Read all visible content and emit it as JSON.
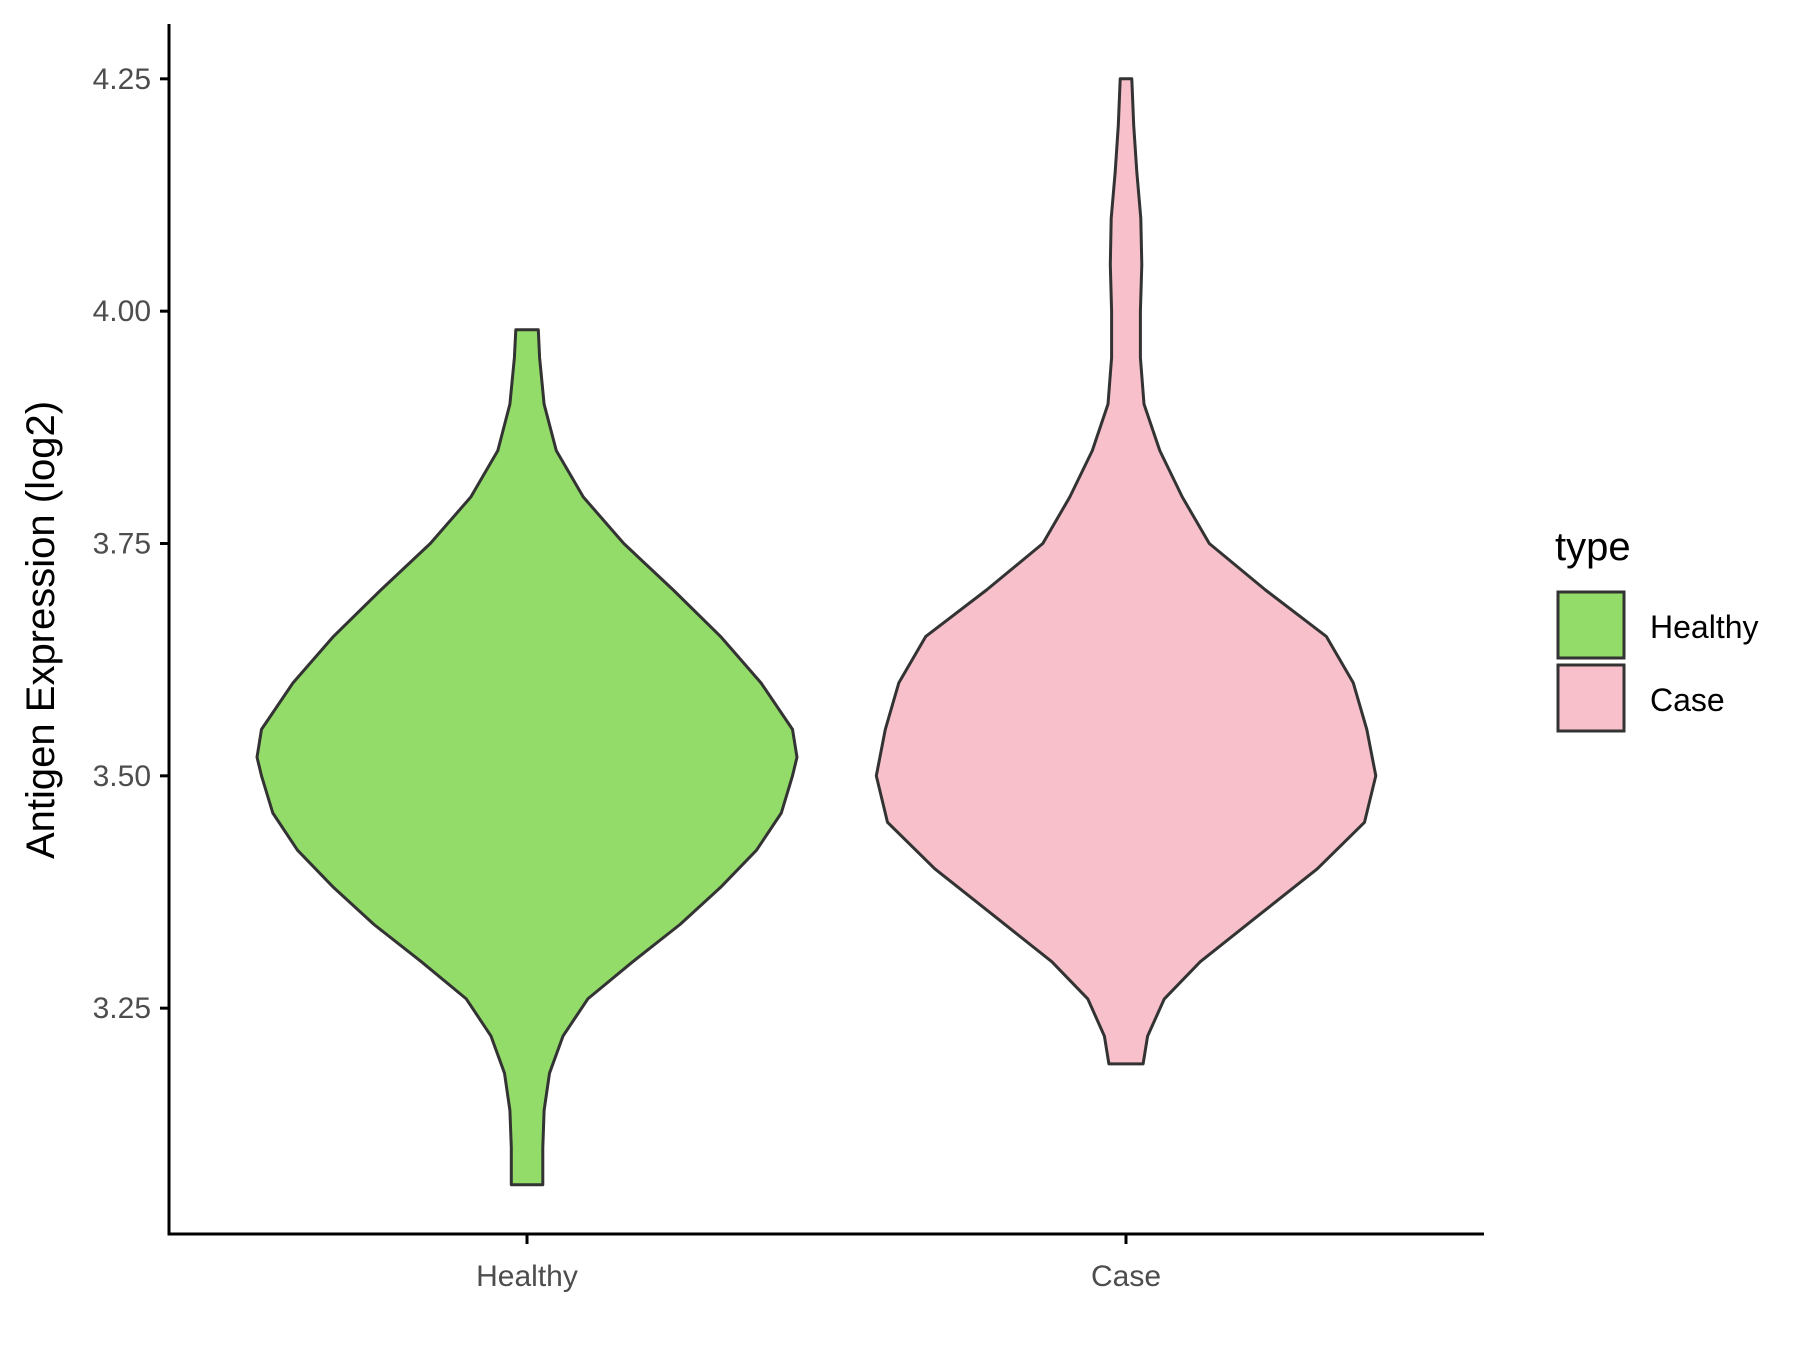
{
  "chart_data": {
    "type": "violin",
    "categories": [
      "Healthy",
      "Case"
    ],
    "xlabel": "",
    "ylabel": "Antigen Expression (log2)",
    "ylim": [
      3.007,
      4.309
    ],
    "y_ticks": [
      "3.25",
      "3.50",
      "3.75",
      "4.00",
      "4.25"
    ],
    "y_tick_values": [
      3.25,
      3.5,
      3.75,
      4.0,
      4.25
    ],
    "grid": false,
    "legend": {
      "title": "type",
      "placement": "right",
      "entries": [
        {
          "label": "Healthy",
          "color": "#93dc6a"
        },
        {
          "label": "Case",
          "color": "#f7c0cb"
        }
      ]
    },
    "series": [
      {
        "name": "Healthy",
        "color": "#93dc6a",
        "min": 3.06,
        "max": 3.98,
        "density": [
          [
            3.06,
            0.035
          ],
          [
            3.1,
            0.035
          ],
          [
            3.14,
            0.038
          ],
          [
            3.18,
            0.05
          ],
          [
            3.22,
            0.08
          ],
          [
            3.26,
            0.135
          ],
          [
            3.3,
            0.235
          ],
          [
            3.34,
            0.34
          ],
          [
            3.38,
            0.43
          ],
          [
            3.42,
            0.51
          ],
          [
            3.46,
            0.565
          ],
          [
            3.5,
            0.59
          ],
          [
            3.52,
            0.6
          ],
          [
            3.55,
            0.59
          ],
          [
            3.6,
            0.52
          ],
          [
            3.65,
            0.43
          ],
          [
            3.7,
            0.325
          ],
          [
            3.75,
            0.215
          ],
          [
            3.8,
            0.125
          ],
          [
            3.85,
            0.065
          ],
          [
            3.9,
            0.038
          ],
          [
            3.95,
            0.028
          ],
          [
            3.98,
            0.025
          ]
        ]
      },
      {
        "name": "Case",
        "color": "#f7c0cb",
        "min": 3.19,
        "max": 4.25,
        "density": [
          [
            3.19,
            0.038
          ],
          [
            3.22,
            0.048
          ],
          [
            3.26,
            0.085
          ],
          [
            3.3,
            0.165
          ],
          [
            3.35,
            0.295
          ],
          [
            3.4,
            0.425
          ],
          [
            3.45,
            0.53
          ],
          [
            3.5,
            0.555
          ],
          [
            3.55,
            0.535
          ],
          [
            3.6,
            0.505
          ],
          [
            3.65,
            0.445
          ],
          [
            3.7,
            0.31
          ],
          [
            3.75,
            0.185
          ],
          [
            3.8,
            0.125
          ],
          [
            3.85,
            0.075
          ],
          [
            3.9,
            0.04
          ],
          [
            3.95,
            0.032
          ],
          [
            4.0,
            0.032
          ],
          [
            4.05,
            0.035
          ],
          [
            4.1,
            0.033
          ],
          [
            4.15,
            0.024
          ],
          [
            4.2,
            0.017
          ],
          [
            4.25,
            0.013
          ]
        ]
      }
    ]
  }
}
